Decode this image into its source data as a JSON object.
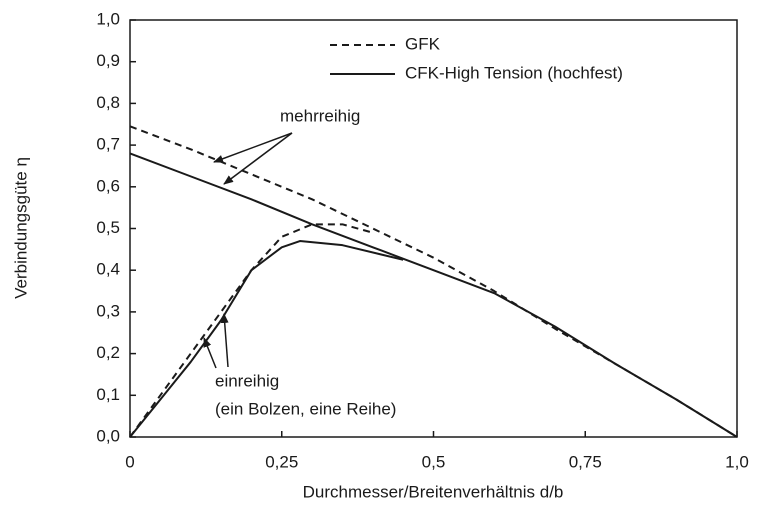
{
  "chart_data": {
    "type": "line",
    "xlabel": "Durchmesser/Breitenverhältnis d/b",
    "ylabel": "Verbindungsgüte η",
    "xlim": [
      0,
      1
    ],
    "ylim": [
      0,
      1
    ],
    "xticks": [
      0,
      {
        "value": 0.25,
        "label": "0,25"
      },
      {
        "value": 0.5,
        "label": "0,5"
      },
      {
        "value": 0.75,
        "label": "0,75"
      },
      {
        "value": 1,
        "label": "1,0"
      }
    ],
    "yticks": [
      {
        "value": 0,
        "label": "0,0"
      },
      {
        "value": 0.1,
        "label": "0,1"
      },
      {
        "value": 0.2,
        "label": "0,2"
      },
      {
        "value": 0.3,
        "label": "0,3"
      },
      {
        "value": 0.4,
        "label": "0,4"
      },
      {
        "value": 0.5,
        "label": "0,5"
      },
      {
        "value": 0.6,
        "label": "0,6"
      },
      {
        "value": 0.7,
        "label": "0,7"
      },
      {
        "value": 0.8,
        "label": "0,8"
      },
      {
        "value": 0.9,
        "label": "0,9"
      },
      {
        "value": 1,
        "label": "1,0"
      }
    ],
    "series": [
      {
        "name": "GFK",
        "color": "#1a1a1a",
        "dash": "dashed",
        "x": [
          0,
          0.1,
          0.2,
          0.3,
          0.4,
          0.5,
          0.6,
          0.7,
          0.8,
          0.9,
          1
        ],
        "values": [
          0.745,
          0.69,
          0.63,
          0.57,
          0.5,
          0.43,
          0.35,
          0.26,
          0.175,
          0.09,
          0
        ]
      },
      {
        "name": "CFK-High Tension (hochfest)",
        "color": "#1a1a1a",
        "dash": "solid",
        "x": [
          0,
          0.1,
          0.2,
          0.3,
          0.4,
          0.5,
          0.6,
          0.7,
          0.8,
          0.9,
          1
        ],
        "values": [
          0.68,
          0.625,
          0.57,
          0.51,
          0.455,
          0.4,
          0.345,
          0.265,
          0.175,
          0.09,
          0
        ]
      },
      {
        "color": "#1a1a1a",
        "dash": "dashed",
        "x": [
          0,
          0.05,
          0.1,
          0.15,
          0.2,
          0.25,
          0.3,
          0.35,
          0.4
        ],
        "values": [
          0,
          0.1,
          0.2,
          0.3,
          0.4,
          0.48,
          0.51,
          0.51,
          0.49
        ]
      },
      {
        "color": "#1a1a1a",
        "dash": "solid",
        "x": [
          0,
          0.05,
          0.1,
          0.15,
          0.2,
          0.25,
          0.28,
          0.35,
          0.45
        ],
        "values": [
          0,
          0.09,
          0.18,
          0.28,
          0.4,
          0.455,
          0.47,
          0.46,
          0.425
        ]
      }
    ],
    "annotations": [
      "mehrreihig",
      "einreihig",
      "(ein Bolzen, eine Reihe)"
    ]
  }
}
